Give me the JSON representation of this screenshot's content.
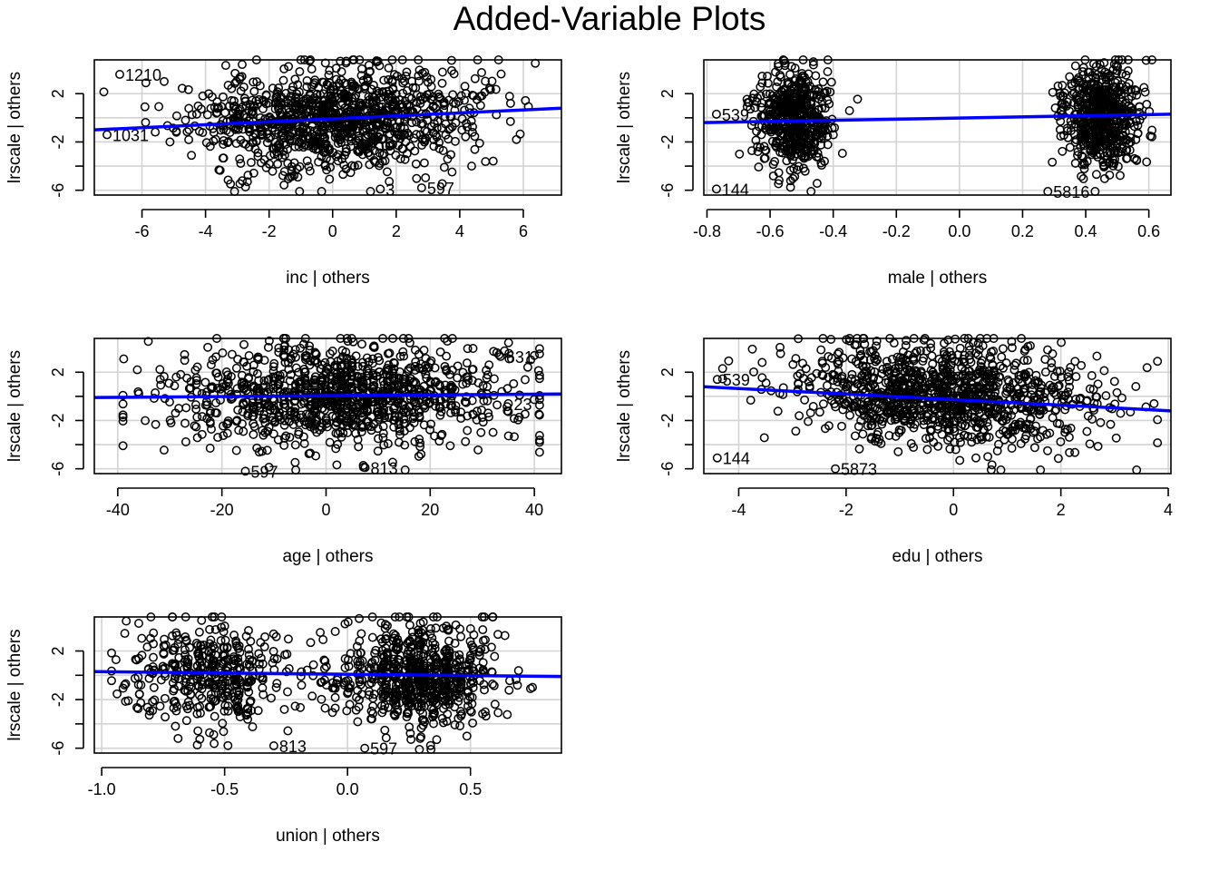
{
  "title": "Added-Variable Plots",
  "colors": {
    "fit_line": "#0000ff",
    "points": "#000000",
    "grid": "#d3d3d3",
    "frame": "#000000"
  },
  "chart_data": [
    {
      "type": "scatter",
      "xlabel": "inc | others",
      "ylabel": "lrscale  | others",
      "xlim": [
        -7.5,
        7.2
      ],
      "ylim": [
        -6.4,
        4.8
      ],
      "xticks": [
        -6,
        -4,
        -2,
        0,
        2,
        4,
        6
      ],
      "yticks": [
        -6,
        -4,
        -2,
        0,
        2
      ],
      "yticklabels": [
        "-6",
        "",
        "-2",
        "",
        "2"
      ],
      "grid": true,
      "fit_line": [
        [
          -7.5,
          -1.0
        ],
        [
          7.2,
          0.8
        ]
      ],
      "point_cloud": {
        "seed": 11,
        "n": 1100,
        "x_mean": 0,
        "x_sd": 2.2,
        "y_mean": 0,
        "y_sd": 2.1,
        "slope": 0.12,
        "x_min": -7.2,
        "x_max": 6.6,
        "y_min": -6.1,
        "y_max": 4.8,
        "x_grid": 0
      },
      "labeled_points": [
        {
          "x": -6.7,
          "y": 3.6,
          "label": "1210"
        },
        {
          "x": -7.1,
          "y": -1.4,
          "label": "1031"
        },
        {
          "x": 2.8,
          "y": -5.8,
          "label": "597"
        },
        {
          "x": 1.5,
          "y": -5.9,
          "label": "3"
        }
      ]
    },
    {
      "type": "scatter",
      "xlabel": "male | others",
      "ylabel": "lrscale  | others",
      "xlim": [
        -0.81,
        0.67
      ],
      "ylim": [
        -6.4,
        4.8
      ],
      "xticks": [
        -0.8,
        -0.6,
        -0.4,
        -0.2,
        0.0,
        0.2,
        0.4,
        0.6
      ],
      "xticklabels": [
        "-0.8",
        "-0.6",
        "-0.4",
        "-0.2",
        "0.0",
        "0.2",
        "0.4",
        "0.6"
      ],
      "yticks": [
        -6,
        -4,
        -2,
        0,
        2
      ],
      "yticklabels": [
        "-6",
        "",
        "-2",
        "",
        "2"
      ],
      "grid": true,
      "fit_line": [
        [
          -0.81,
          -0.4
        ],
        [
          0.67,
          0.3
        ]
      ],
      "point_cloud": {
        "seed": 22,
        "n": 1100,
        "clusters": [
          [
            -0.52,
            0.06
          ],
          [
            0.45,
            0.06
          ]
        ],
        "weights": [
          0.45,
          0.55
        ],
        "y_mean": 0,
        "y_sd": 2.1,
        "slope": 0.4,
        "x_min": -0.78,
        "x_max": 0.61,
        "y_min": -6.1,
        "y_max": 4.8,
        "x_grid": 0
      },
      "labeled_points": [
        {
          "x": -0.77,
          "y": -5.9,
          "label": "144"
        },
        {
          "x": -0.77,
          "y": 0.3,
          "label": "539"
        },
        {
          "x": 0.28,
          "y": -6.1,
          "label": "5816"
        }
      ]
    },
    {
      "type": "scatter",
      "xlabel": "age | others",
      "ylabel": "lrscale  | others",
      "xlim": [
        -44.5,
        45.2
      ],
      "ylim": [
        -6.4,
        4.8
      ],
      "xticks": [
        -40,
        -20,
        0,
        20,
        40
      ],
      "yticks": [
        -6,
        -4,
        -2,
        0,
        2
      ],
      "yticklabels": [
        "-6",
        "",
        "-2",
        "",
        "2"
      ],
      "grid": true,
      "fit_line": [
        [
          -44.5,
          -0.1
        ],
        [
          45.2,
          0.2
        ]
      ],
      "point_cloud": {
        "seed": 33,
        "n": 1100,
        "x_mean": 3,
        "x_sd": 16,
        "y_mean": 0,
        "y_sd": 2.1,
        "slope": 0.004,
        "x_min": -39,
        "x_max": 41,
        "y_min": -6.1,
        "y_max": 4.8,
        "x_grid": 1
      },
      "labeled_points": [
        {
          "x": 33.5,
          "y": 3.3,
          "label": "631"
        },
        {
          "x": 35.0,
          "y": -0.6,
          "label": "23"
        },
        {
          "x": -15.5,
          "y": -6.2,
          "label": "597"
        },
        {
          "x": 7.5,
          "y": -5.9,
          "label": "813"
        }
      ]
    },
    {
      "type": "scatter",
      "xlabel": "edu | others",
      "ylabel": "lrscale  | others",
      "xlim": [
        -4.65,
        4.05
      ],
      "ylim": [
        -6.4,
        4.8
      ],
      "xticks": [
        -4,
        -2,
        0,
        2,
        4
      ],
      "yticks": [
        -6,
        -4,
        -2,
        0,
        2
      ],
      "yticklabels": [
        "-6",
        "",
        "-2",
        "",
        "2"
      ],
      "grid": true,
      "fit_line": [
        [
          -4.65,
          0.8
        ],
        [
          4.05,
          -1.2
        ]
      ],
      "point_cloud": {
        "seed": 44,
        "n": 1100,
        "x_mean": -0.2,
        "x_sd": 1.4,
        "y_mean": 0,
        "y_sd": 2.1,
        "slope": -0.23,
        "x_min": -4.3,
        "x_max": 3.8,
        "y_min": -6.1,
        "y_max": 4.8,
        "x_grid": 0
      },
      "labeled_points": [
        {
          "x": -4.4,
          "y": 1.4,
          "label": "539"
        },
        {
          "x": -4.4,
          "y": -5.1,
          "label": "144"
        },
        {
          "x": -2.2,
          "y": -6.0,
          "label": "5873"
        }
      ]
    },
    {
      "type": "scatter",
      "xlabel": "union | others",
      "ylabel": "lrscale  | others",
      "xlim": [
        -1.03,
        0.87
      ],
      "ylim": [
        -6.4,
        4.8
      ],
      "xticks": [
        -1.0,
        -0.5,
        0.0,
        0.5
      ],
      "xticklabels": [
        "-1.0",
        "-0.5",
        "0.0",
        "0.5"
      ],
      "yticks": [
        -6,
        -4,
        -2,
        0,
        2
      ],
      "yticklabels": [
        "-6",
        "",
        "-2",
        "",
        "2"
      ],
      "grid": true,
      "fit_line": [
        [
          -1.03,
          0.3
        ],
        [
          0.87,
          -0.1
        ]
      ],
      "point_cloud": {
        "seed": 55,
        "n": 1100,
        "clusters": [
          [
            -0.55,
            0.17
          ],
          [
            0.3,
            0.15
          ]
        ],
        "weights": [
          0.38,
          0.62
        ],
        "y_mean": 0,
        "y_sd": 2.1,
        "slope": -0.2,
        "x_min": -0.96,
        "x_max": 0.8,
        "y_min": -6.1,
        "y_max": 4.8,
        "x_grid": 0.05
      },
      "labeled_points": [
        {
          "x": -0.3,
          "y": -5.8,
          "label": "813"
        },
        {
          "x": 0.07,
          "y": -6.0,
          "label": "597"
        }
      ]
    }
  ]
}
